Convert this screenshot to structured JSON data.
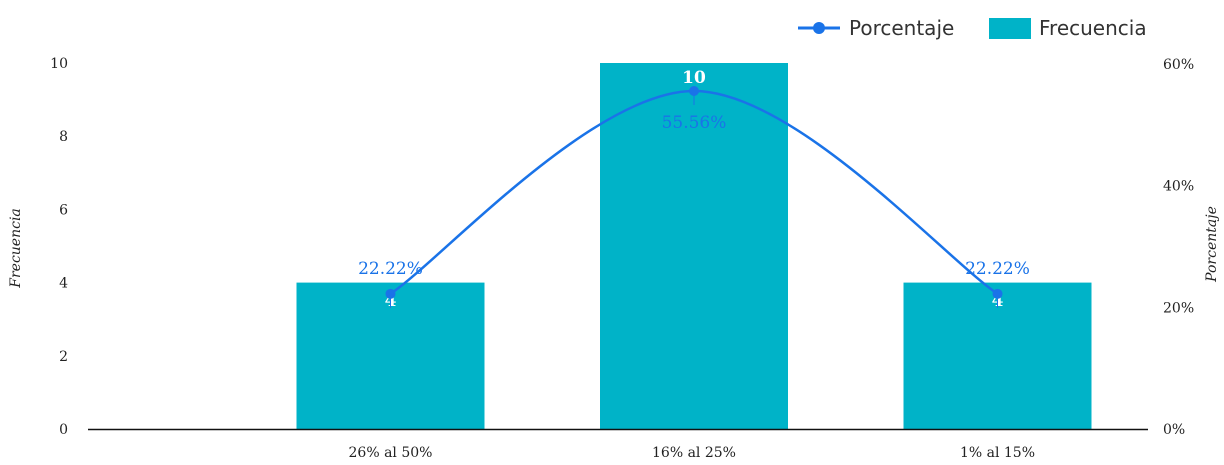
{
  "chart_data": {
    "type": "bar",
    "categories": [
      "26% al 50%",
      "16% al 25%",
      "1% al 15%"
    ],
    "series": [
      {
        "name": "Frecuencia",
        "type": "bar",
        "axis": "left",
        "values": [
          4,
          10,
          4
        ],
        "labels": [
          "4",
          "10",
          "4"
        ],
        "color": "#00b3c8"
      },
      {
        "name": "Porcentaje",
        "type": "line",
        "axis": "right",
        "values": [
          22.22,
          55.56,
          22.22
        ],
        "labels": [
          "22.22%",
          "55.56%",
          "22.22%"
        ],
        "color": "#1a73e8"
      }
    ],
    "ylabel": "Frecuencia",
    "ylim": [
      0,
      10
    ],
    "y_ticks": [
      "0",
      "2",
      "4",
      "6",
      "8",
      "10"
    ],
    "y2label": "Porcentaje",
    "y2lim": [
      0,
      60
    ],
    "y2_ticks": [
      "0%",
      "20%",
      "40%",
      "60%"
    ],
    "legend": {
      "placement": "top-right",
      "items": [
        "Porcentaje",
        "Frecuencia"
      ]
    },
    "grid": false
  }
}
